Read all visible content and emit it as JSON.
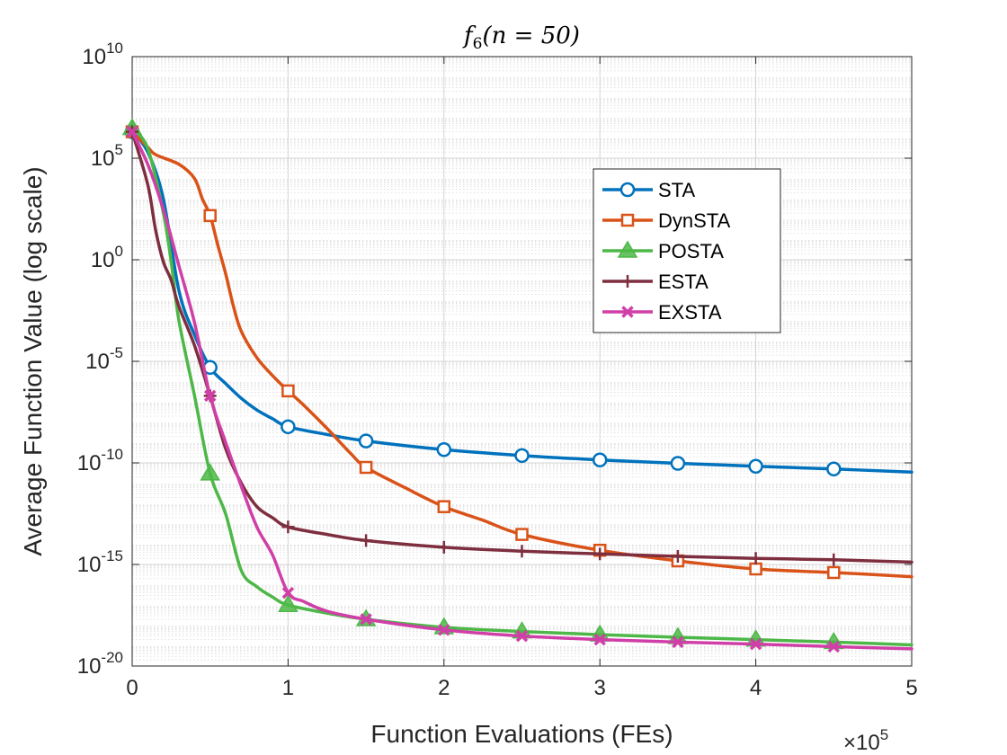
{
  "chart_data": {
    "type": "line",
    "title_main": "f",
    "title_sub": "6",
    "title_rest": "(n = 50)",
    "xlabel": "Function Evaluations (FEs)",
    "ylabel": "Average Function Value (log scale)",
    "x_multiplier": {
      "base": "×10",
      "exp": "5"
    },
    "x_scale": "linear",
    "y_scale": "log",
    "xlim": [
      0,
      500000
    ],
    "ylim": [
      1e-20,
      10000000000.0
    ],
    "x_ticks": [
      {
        "value": 0,
        "label": "0"
      },
      {
        "value": 100000,
        "label": "1"
      },
      {
        "value": 200000,
        "label": "2"
      },
      {
        "value": 300000,
        "label": "3"
      },
      {
        "value": 400000,
        "label": "4"
      },
      {
        "value": 500000,
        "label": "5"
      }
    ],
    "y_ticks": [
      {
        "value": 1e-20,
        "base": "10",
        "exp": "-20"
      },
      {
        "value": 1e-15,
        "base": "10",
        "exp": "-15"
      },
      {
        "value": 1e-10,
        "base": "10",
        "exp": "-10"
      },
      {
        "value": 1e-05,
        "base": "10",
        "exp": "-5"
      },
      {
        "value": 1,
        "base": "10",
        "exp": "0"
      },
      {
        "value": 100000.0,
        "base": "10",
        "exp": "5"
      },
      {
        "value": 10000000000.0,
        "base": "10",
        "exp": "10"
      }
    ],
    "grid": true,
    "legend_position": "upper-right",
    "series": [
      {
        "name": "STA",
        "color": "#0072BD",
        "marker": "circle",
        "points": [
          [
            0,
            2000000.0
          ],
          [
            10000,
            200000.0
          ],
          [
            20000,
            1000.0
          ],
          [
            30000,
            0.03
          ],
          [
            40000,
            0.0002
          ],
          [
            50000,
            5e-06
          ],
          [
            60000,
            8e-07
          ],
          [
            70000,
            1.5e-07
          ],
          [
            80000,
            4e-08
          ],
          [
            90000,
            1.5e-08
          ],
          [
            100000,
            6e-09
          ],
          [
            125000,
            2.5e-09
          ],
          [
            150000,
            1.2e-09
          ],
          [
            200000,
            4.5e-10
          ],
          [
            250000,
            2.3e-10
          ],
          [
            300000,
            1.4e-10
          ],
          [
            350000,
            9.5e-11
          ],
          [
            400000,
            6.8e-11
          ],
          [
            450000,
            5e-11
          ],
          [
            500000,
            3.5e-11
          ]
        ],
        "markers": [
          [
            0,
            2000000.0
          ],
          [
            50000,
            5e-06
          ],
          [
            100000,
            6e-09
          ],
          [
            150000,
            1.2e-09
          ],
          [
            200000,
            4.5e-10
          ],
          [
            250000,
            2.3e-10
          ],
          [
            300000,
            1.4e-10
          ],
          [
            350000,
            9.5e-11
          ],
          [
            400000,
            6.8e-11
          ],
          [
            450000,
            5e-11
          ]
        ]
      },
      {
        "name": "DynSTA",
        "color": "#D95319",
        "marker": "square",
        "points": [
          [
            0,
            2000000.0
          ],
          [
            10000,
            350000.0
          ],
          [
            15000,
            150000.0
          ],
          [
            30000,
            50000.0
          ],
          [
            40000,
            10000.0
          ],
          [
            45000,
            1000.0
          ],
          [
            50000,
            150.0
          ],
          [
            55000,
            5.0
          ],
          [
            60000,
            0.2
          ],
          [
            65000,
            0.005
          ],
          [
            70000,
            0.0003
          ],
          [
            80000,
            1.5e-05
          ],
          [
            90000,
            2e-06
          ],
          [
            100000,
            3.5e-07
          ],
          [
            110000,
            7e-08
          ],
          [
            125000,
            5e-09
          ],
          [
            140000,
            3e-10
          ],
          [
            150000,
            6e-11
          ],
          [
            175000,
            6e-12
          ],
          [
            200000,
            7e-13
          ],
          [
            225000,
            1.5e-13
          ],
          [
            250000,
            3e-14
          ],
          [
            300000,
            5e-15
          ],
          [
            350000,
            1.5e-15
          ],
          [
            400000,
            6e-16
          ],
          [
            450000,
            4e-16
          ],
          [
            500000,
            2.5e-16
          ]
        ],
        "markers": [
          [
            0,
            2000000.0
          ],
          [
            50000,
            150.0
          ],
          [
            100000,
            3.5e-07
          ],
          [
            150000,
            6e-11
          ],
          [
            200000,
            7e-13
          ],
          [
            250000,
            3e-14
          ],
          [
            300000,
            5e-15
          ],
          [
            350000,
            1.5e-15
          ],
          [
            400000,
            6e-16
          ],
          [
            450000,
            4e-16
          ]
        ]
      },
      {
        "name": "POSTA",
        "color": "#4DB848",
        "marker": "triangle",
        "points": [
          [
            0,
            3000000.0
          ],
          [
            10000,
            300000.0
          ],
          [
            20000,
            200.0
          ],
          [
            25000,
            0.8
          ],
          [
            30000,
            0.001
          ],
          [
            40000,
            2e-07
          ],
          [
            50000,
            3e-11
          ],
          [
            60000,
            3e-13
          ],
          [
            70000,
            5e-16
          ],
          [
            80000,
            8e-17
          ],
          [
            90000,
            2.5e-17
          ],
          [
            100000,
            1e-17
          ],
          [
            125000,
            4e-18
          ],
          [
            150000,
            2e-18
          ],
          [
            200000,
            8e-19
          ],
          [
            250000,
            5e-19
          ],
          [
            300000,
            3.5e-19
          ],
          [
            350000,
            2.6e-19
          ],
          [
            400000,
            2e-19
          ],
          [
            450000,
            1.5e-19
          ],
          [
            500000,
            1.1e-19
          ]
        ],
        "markers": [
          [
            0,
            3000000.0
          ],
          [
            50000,
            3e-11
          ],
          [
            100000,
            1e-17
          ],
          [
            150000,
            2e-18
          ],
          [
            200000,
            8e-19
          ],
          [
            250000,
            5e-19
          ],
          [
            300000,
            3.5e-19
          ],
          [
            350000,
            2.6e-19
          ],
          [
            400000,
            2e-19
          ],
          [
            450000,
            1.5e-19
          ]
        ]
      },
      {
        "name": "ESTA",
        "color": "#7E2F3F",
        "marker": "plus",
        "points": [
          [
            0,
            2000000.0
          ],
          [
            10000,
            5000.0
          ],
          [
            15000,
            30.0
          ],
          [
            20000,
            0.8
          ],
          [
            25000,
            0.1
          ],
          [
            30000,
            0.005
          ],
          [
            40000,
            6e-05
          ],
          [
            50000,
            2e-07
          ],
          [
            60000,
            5e-10
          ],
          [
            70000,
            1e-11
          ],
          [
            80000,
            7e-13
          ],
          [
            90000,
            2e-13
          ],
          [
            100000,
            7e-14
          ],
          [
            125000,
            3e-14
          ],
          [
            150000,
            1.5e-14
          ],
          [
            200000,
            7e-15
          ],
          [
            250000,
            4.5e-15
          ],
          [
            300000,
            3.3e-15
          ],
          [
            350000,
            2.5e-15
          ],
          [
            400000,
            2e-15
          ],
          [
            450000,
            1.7e-15
          ],
          [
            500000,
            1.3e-15
          ]
        ],
        "markers": [
          [
            0,
            2000000.0
          ],
          [
            50000,
            2e-07
          ],
          [
            100000,
            7e-14
          ],
          [
            150000,
            1.5e-14
          ],
          [
            200000,
            7e-15
          ],
          [
            250000,
            4.5e-15
          ],
          [
            300000,
            3.3e-15
          ],
          [
            350000,
            2.5e-15
          ],
          [
            400000,
            2e-15
          ],
          [
            450000,
            1.7e-15
          ]
        ]
      },
      {
        "name": "EXSTA",
        "color": "#D03FA8",
        "marker": "x",
        "points": [
          [
            0,
            2000000.0
          ],
          [
            10000,
            50000.0
          ],
          [
            20000,
            300.0
          ],
          [
            30000,
            0.5
          ],
          [
            40000,
            0.0008
          ],
          [
            50000,
            2e-07
          ],
          [
            60000,
            1e-09
          ],
          [
            70000,
            7e-12
          ],
          [
            80000,
            7e-14
          ],
          [
            90000,
            3e-15
          ],
          [
            100000,
            4e-17
          ],
          [
            110000,
            1.5e-17
          ],
          [
            125000,
            5e-18
          ],
          [
            150000,
            2e-18
          ],
          [
            200000,
            6e-19
          ],
          [
            250000,
            3e-19
          ],
          [
            300000,
            2e-19
          ],
          [
            350000,
            1.5e-19
          ],
          [
            400000,
            1.2e-19
          ],
          [
            450000,
            9e-20
          ],
          [
            500000,
            7e-20
          ]
        ],
        "markers": [
          [
            0,
            2000000.0
          ],
          [
            50000,
            2e-07
          ],
          [
            100000,
            4e-17
          ],
          [
            150000,
            2e-18
          ],
          [
            200000,
            6e-19
          ],
          [
            250000,
            3e-19
          ],
          [
            300000,
            2e-19
          ],
          [
            350000,
            1.5e-19
          ],
          [
            400000,
            1.2e-19
          ],
          [
            450000,
            9e-20
          ]
        ]
      }
    ]
  }
}
